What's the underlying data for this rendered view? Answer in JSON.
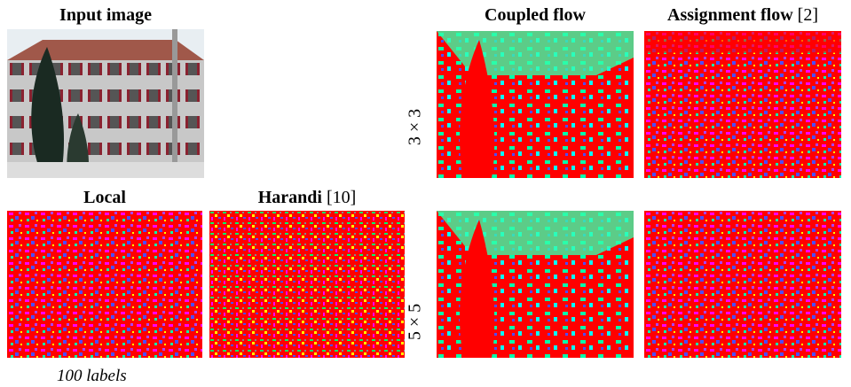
{
  "input": {
    "title": "Input image"
  },
  "columns": [
    {
      "title": "Coupled flow"
    },
    {
      "title": "Assignment flow",
      "cite": "[2]"
    }
  ],
  "rows": [
    {
      "label": "3 × 3"
    },
    {
      "label": "5 × 5"
    }
  ],
  "baselines": [
    {
      "title": "Local"
    },
    {
      "title": "Harandi",
      "cite": "[10]"
    }
  ],
  "caption": "100 labels"
}
